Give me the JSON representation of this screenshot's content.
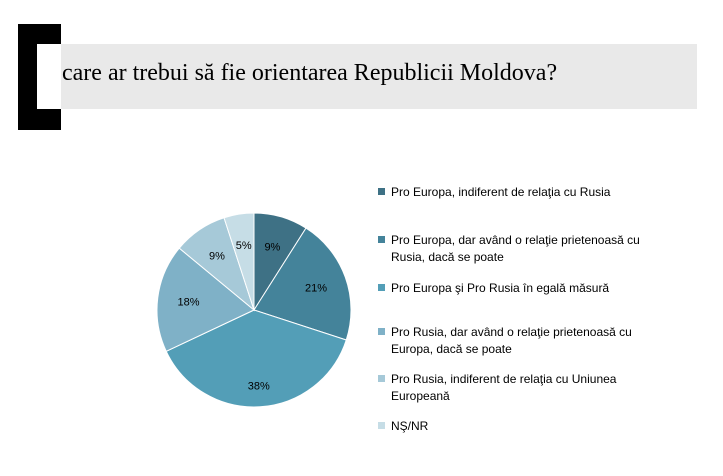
{
  "title": "care ar trebui să fie orientarea Republicii Moldova?",
  "chart_data": {
    "type": "pie",
    "categories": [
      "Pro Europa, indiferent de relaţia cu Rusia",
      "Pro Europa, dar având o relaţie prietenoasă cu Rusia, dacă se poate",
      "Pro Europa şi Pro Rusia în egală măsură",
      "Pro Rusia, dar având o relaţie prietenoasă cu Europa, dacă se poate",
      "Pro Rusia, indiferent de relaţia cu Uniunea Europeană",
      "NŞ/NR"
    ],
    "values": [
      9,
      21,
      38,
      18,
      9,
      5
    ],
    "labels": [
      "9%",
      "21%",
      "38%",
      "18%",
      "9%",
      "5%"
    ],
    "colors": [
      "#3e7185",
      "#44839a",
      "#539eb7",
      "#7fb1c7",
      "#a6c9d8",
      "#c6dde6"
    ],
    "legend_position": "right"
  }
}
